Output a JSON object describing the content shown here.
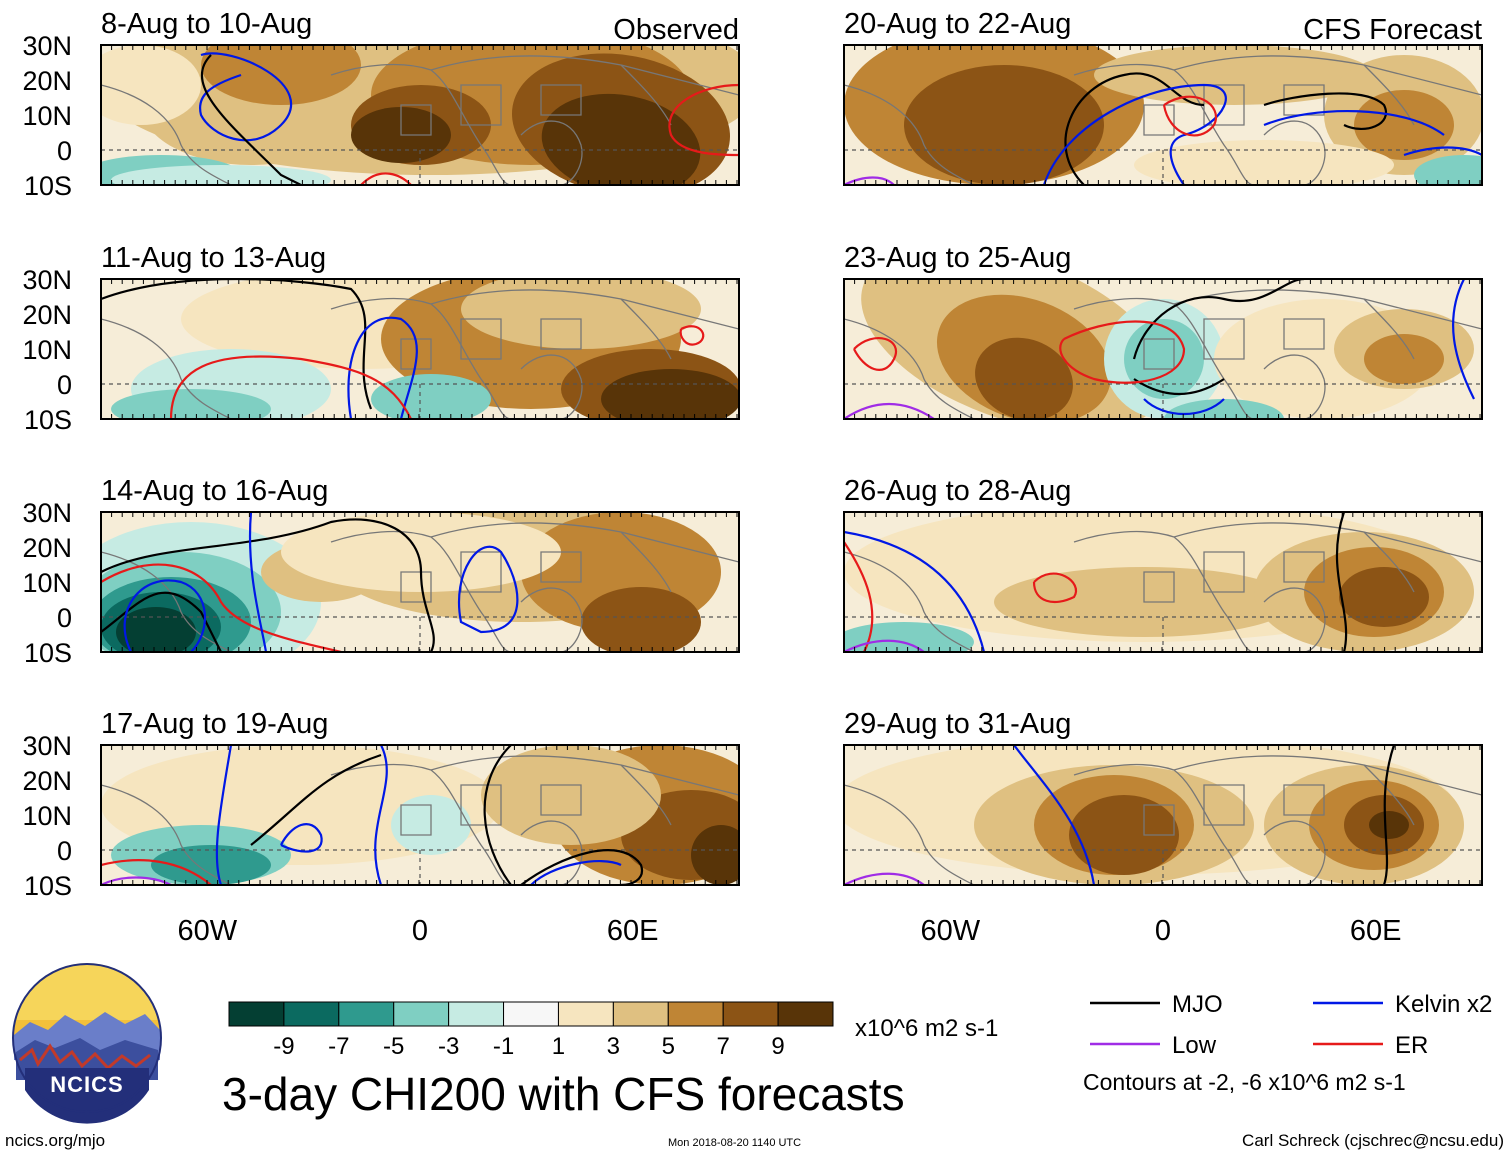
{
  "figure": {
    "title": "3-day CHI200 with CFS forecasts",
    "left_column_tag": "Observed",
    "right_column_tag": "CFS Forecast",
    "units": "x10^6 m2 s-1",
    "contours_note": "Contours at -2, -6 x10^6 m2 s-1",
    "website": "ncics.org/mjo",
    "timestamp": "Mon 2018-08-20 1140 UTC",
    "author": "Carl Schreck (cjschrec@ncsu.edu)",
    "logo_text": "NCICS"
  },
  "panels": [
    {
      "period": "8-Aug to 10-Aug",
      "column": "left",
      "source": "Observed"
    },
    {
      "period": "11-Aug to 13-Aug",
      "column": "left",
      "source": "Observed"
    },
    {
      "period": "14-Aug to 16-Aug",
      "column": "left",
      "source": "Observed"
    },
    {
      "period": "17-Aug to 19-Aug",
      "column": "left",
      "source": "Observed"
    },
    {
      "period": "20-Aug to 22-Aug",
      "column": "right",
      "source": "CFS Forecast"
    },
    {
      "period": "23-Aug to 25-Aug",
      "column": "right",
      "source": "CFS Forecast"
    },
    {
      "period": "26-Aug to 28-Aug",
      "column": "right",
      "source": "CFS Forecast"
    },
    {
      "period": "29-Aug to 31-Aug",
      "column": "right",
      "source": "CFS Forecast"
    }
  ],
  "axes": {
    "lat_labels": [
      "30N",
      "20N",
      "10N",
      "0",
      "10S"
    ],
    "lat_values": [
      30,
      20,
      10,
      0,
      -10
    ],
    "lon_labels": [
      "60W",
      "0",
      "60E"
    ],
    "lon_values": [
      -60,
      0,
      60
    ],
    "lon_range": [
      -90,
      90
    ],
    "lat_range": [
      -10,
      30
    ]
  },
  "colorbar": {
    "labels": [
      "-9",
      "-7",
      "-5",
      "-3",
      "-1",
      "1",
      "3",
      "5",
      "7",
      "9"
    ],
    "colors": [
      "#043f33",
      "#0b6a60",
      "#2f9a8e",
      "#7fcfc2",
      "#c6ebe3",
      "#f7f7f7",
      "#f6e5bf",
      "#dfc081",
      "#bf8535",
      "#8c5415",
      "#583408"
    ]
  },
  "legend": [
    {
      "label": "MJO",
      "color": "#000000"
    },
    {
      "label": "Kelvin x2",
      "color": "#0018e6"
    },
    {
      "label": "Low",
      "color": "#a02ce6"
    },
    {
      "label": "ER",
      "color": "#e61a1a"
    }
  ]
}
